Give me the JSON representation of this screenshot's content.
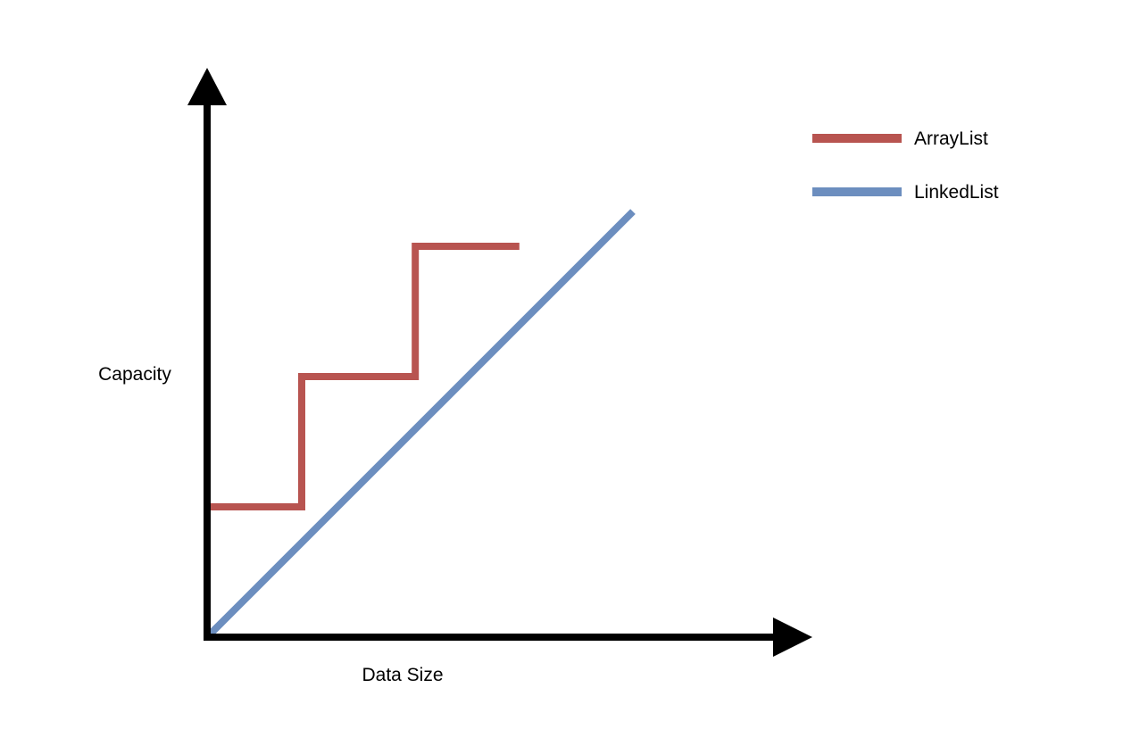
{
  "chart_data": {
    "type": "line",
    "title": "",
    "xlabel": "Data Size",
    "ylabel": "Capacity",
    "xlim": [
      0,
      6
    ],
    "ylim": [
      0,
      6
    ],
    "grid": false,
    "axis_ticks": false,
    "legend_position": "top-right",
    "series": [
      {
        "name": "ArrayList",
        "color": "#b85450",
        "step": true,
        "points": [
          [
            0,
            1.5
          ],
          [
            1,
            1.5
          ],
          [
            1,
            3
          ],
          [
            2.2,
            3
          ],
          [
            2.2,
            4.5
          ],
          [
            3.3,
            4.5
          ]
        ]
      },
      {
        "name": "LinkedList",
        "color": "#6c8ebf",
        "step": false,
        "points": [
          [
            0,
            0
          ],
          [
            4.5,
            4.9
          ]
        ]
      }
    ]
  }
}
